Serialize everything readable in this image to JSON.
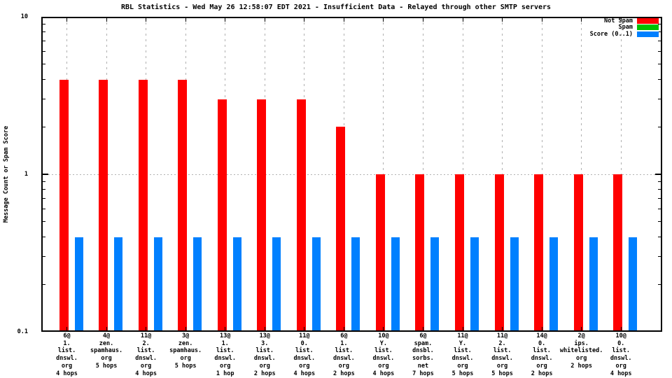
{
  "chart_data": {
    "type": "bar",
    "title": "RBL Statistics - Wed May 26 12:58:07 EDT 2021 - Insufficient Data - Relayed through other SMTP servers",
    "xlabel": "",
    "ylabel": "Message Count or Spam Score",
    "yscale": "log",
    "ylim": [
      0.1,
      10
    ],
    "y_tick_labels": [
      "10",
      "1",
      "0.1"
    ],
    "legend_position": "top-right",
    "grid": {
      "vertical_dashed_at_each_category": true,
      "horizontal_dotted_at_y": 1
    },
    "categories": [
      [
        "6@",
        "1.",
        "list.",
        "dnswl.",
        "org",
        "4 hops"
      ],
      [
        "4@",
        "zen.",
        "spamhaus.",
        "org",
        "5 hops"
      ],
      [
        "11@",
        "2.",
        "list.",
        "dnswl.",
        "org",
        "4 hops"
      ],
      [
        "3@",
        "zen.",
        "spamhaus.",
        "org",
        "5 hops"
      ],
      [
        "13@",
        "1.",
        "list.",
        "dnswl.",
        "org",
        "1 hop"
      ],
      [
        "13@",
        "3.",
        "list.",
        "dnswl.",
        "org",
        "2 hops"
      ],
      [
        "11@",
        "0.",
        "list.",
        "dnswl.",
        "org",
        "4 hops"
      ],
      [
        "6@",
        "1.",
        "list.",
        "dnswl.",
        "org",
        "2 hops"
      ],
      [
        "10@",
        "Y.",
        "list.",
        "dnswl.",
        "org",
        "4 hops"
      ],
      [
        "6@",
        "spam.",
        "dnsbl.",
        "sorbs.",
        "net",
        "7 hops"
      ],
      [
        "11@",
        "Y.",
        "list.",
        "dnswl.",
        "org",
        "5 hops"
      ],
      [
        "11@",
        "2.",
        "list.",
        "dnswl.",
        "org",
        "5 hops"
      ],
      [
        "14@",
        "0.",
        "list.",
        "dnswl.",
        "org",
        "2 hops"
      ],
      [
        "2@",
        "ips.",
        "whitelisted.",
        "org",
        "2 hops"
      ],
      [
        "10@",
        "0.",
        "list.",
        "dnswl.",
        "org",
        "4 hops"
      ]
    ],
    "series": [
      {
        "name": "Not Spam",
        "color": "#ff0000",
        "values": [
          4,
          4,
          4,
          4,
          3,
          3,
          3,
          2,
          1,
          1,
          1,
          1,
          1,
          1,
          1
        ]
      },
      {
        "name": "Spam",
        "color": "#00c000",
        "values": [
          0,
          0,
          0,
          0,
          0,
          0,
          0,
          0,
          0,
          0,
          0,
          0,
          0,
          0,
          0
        ]
      },
      {
        "name": "Score (0..1)",
        "color": "#0080ff",
        "values": [
          0.4,
          0.4,
          0.4,
          0.4,
          0.4,
          0.4,
          0.4,
          0.4,
          0.4,
          0.4,
          0.4,
          0.4,
          0.4,
          0.4,
          0.4
        ]
      }
    ],
    "colors": {
      "border": "#000000",
      "grid": "#b0b0b0",
      "background": "#ffffff"
    }
  }
}
